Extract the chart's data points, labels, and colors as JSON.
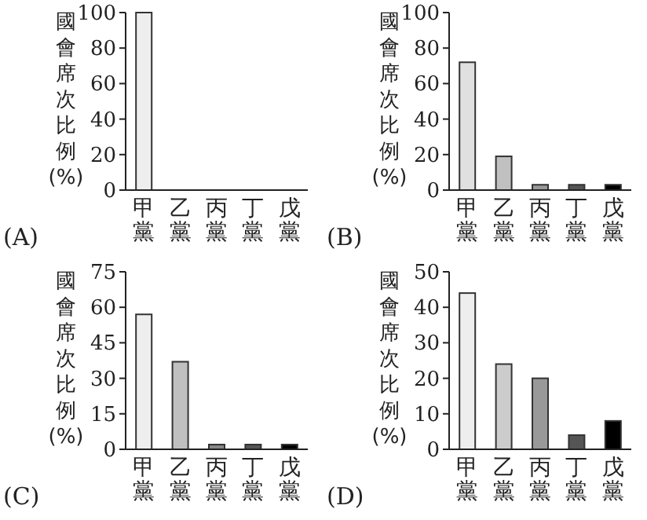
{
  "chart_data": [
    {
      "type": "bar",
      "title": "(A)",
      "ylabel": "國會席次比例(%)",
      "categories": [
        "甲黨",
        "乙黨",
        "丙黨",
        "丁黨",
        "戊黨"
      ],
      "values": [
        100,
        0,
        0,
        0,
        0
      ],
      "colors": [
        "#eeeeee",
        "#cccccc",
        "#999999",
        "#555555",
        "#000000"
      ],
      "ylim": [
        0,
        100
      ],
      "yticks": [
        0,
        20,
        40,
        60,
        80,
        100
      ]
    },
    {
      "type": "bar",
      "title": "(B)",
      "ylabel": "國會席次比例(%)",
      "categories": [
        "甲黨",
        "乙黨",
        "丙黨",
        "丁黨",
        "戊黨"
      ],
      "values": [
        72,
        19,
        3,
        3,
        3
      ],
      "colors": [
        "#e0e0e0",
        "#c0c0c0",
        "#999999",
        "#555555",
        "#000000"
      ],
      "ylim": [
        0,
        100
      ],
      "yticks": [
        0,
        20,
        40,
        60,
        80,
        100
      ]
    },
    {
      "type": "bar",
      "title": "(C)",
      "ylabel": "國會席次比例(%)",
      "categories": [
        "甲黨",
        "乙黨",
        "丙黨",
        "丁黨",
        "戊黨"
      ],
      "values": [
        57,
        37,
        2,
        2,
        2
      ],
      "colors": [
        "#eeeeee",
        "#c0c0c0",
        "#888888",
        "#555555",
        "#000000"
      ],
      "ylim": [
        0,
        75
      ],
      "yticks": [
        0,
        15,
        30,
        45,
        60,
        75
      ]
    },
    {
      "type": "bar",
      "title": "(D)",
      "ylabel": "國會席次比例(%)",
      "categories": [
        "甲黨",
        "乙黨",
        "丙黨",
        "丁黨",
        "戊黨"
      ],
      "values": [
        44,
        24,
        20,
        4,
        8
      ],
      "colors": [
        "#eeeeee",
        "#cccccc",
        "#999999",
        "#555555",
        "#000000"
      ],
      "ylim": [
        0,
        50
      ],
      "yticks": [
        0,
        10,
        20,
        30,
        40,
        50
      ]
    }
  ]
}
